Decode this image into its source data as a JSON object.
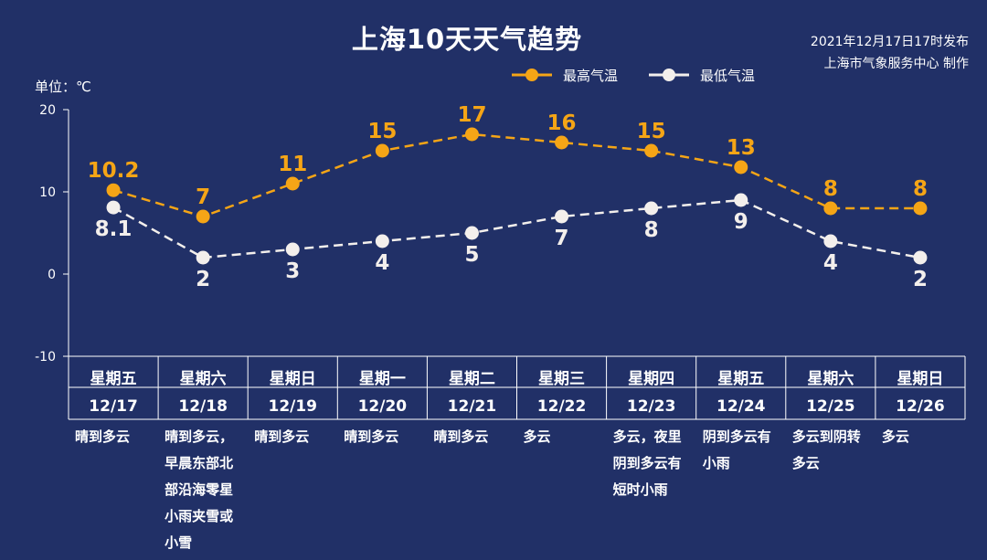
{
  "header": {
    "title": "上海10天天气趋势",
    "published": "2021年12月17日17时发布",
    "producer": "上海市气象服务中心 制作"
  },
  "colors": {
    "background": "#213067",
    "high": "#f5a516",
    "low": "#f3efec",
    "axis": "#ffffff"
  },
  "chart_data": {
    "type": "line",
    "unit_label": "单位：℃",
    "ylim": [
      -10,
      20
    ],
    "yticks": [
      20,
      10,
      0,
      -10
    ],
    "grid": false,
    "legend_position": "top-right",
    "categories": [
      {
        "weekday": "星期五",
        "date": "12/17",
        "weather": [
          "晴到多云"
        ]
      },
      {
        "weekday": "星期六",
        "date": "12/18",
        "weather": [
          "晴到多云，",
          "早晨东部北",
          "部沿海零星",
          "小雨夹雪或",
          "小雪"
        ]
      },
      {
        "weekday": "星期日",
        "date": "12/19",
        "weather": [
          "晴到多云"
        ]
      },
      {
        "weekday": "星期一",
        "date": "12/20",
        "weather": [
          "晴到多云"
        ]
      },
      {
        "weekday": "星期二",
        "date": "12/21",
        "weather": [
          "晴到多云"
        ]
      },
      {
        "weekday": "星期三",
        "date": "12/22",
        "weather": [
          "多云"
        ]
      },
      {
        "weekday": "星期四",
        "date": "12/23",
        "weather": [
          "多云，夜里",
          "阴到多云有",
          "短时小雨"
        ]
      },
      {
        "weekday": "星期五",
        "date": "12/24",
        "weather": [
          "阴到多云有",
          "小雨"
        ]
      },
      {
        "weekday": "星期六",
        "date": "12/25",
        "weather": [
          "多云到阴转",
          "多云"
        ]
      },
      {
        "weekday": "星期日",
        "date": "12/26",
        "weather": [
          "多云"
        ]
      }
    ],
    "series": [
      {
        "key": "high",
        "name": "最高气温",
        "values": [
          10.2,
          7,
          11,
          15,
          17,
          16,
          15,
          13,
          8,
          8
        ],
        "labels": [
          "10.2",
          "7",
          "11",
          "15",
          "17",
          "16",
          "15",
          "13",
          "8",
          "8"
        ]
      },
      {
        "key": "low",
        "name": "最低气温",
        "values": [
          8.1,
          2,
          3,
          4,
          5,
          7,
          8,
          9,
          4,
          2
        ],
        "labels": [
          "8.1",
          "2",
          "3",
          "4",
          "5",
          "7",
          "8",
          "9",
          "4",
          "2"
        ]
      }
    ]
  }
}
